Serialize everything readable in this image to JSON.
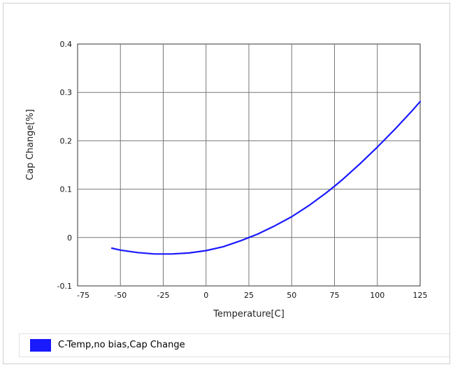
{
  "chart_data": {
    "type": "line",
    "xlabel": "Temperature[C]",
    "ylabel": "Cap Change[%]",
    "xlim": [
      -75,
      125
    ],
    "ylim": [
      -0.1,
      0.4
    ],
    "x_ticks": [
      "-75",
      "-50",
      "-25",
      "0",
      "25",
      "50",
      "75",
      "100",
      "125"
    ],
    "y_ticks": [
      "0.4",
      "0.3",
      "0.2",
      "0.1",
      "0",
      "-0.1"
    ],
    "grid": true,
    "legend_position": "bottom",
    "series": [
      {
        "name": "C-Temp,no bias,Cap Change",
        "color": "#1a1aff",
        "x": [
          -55,
          -50,
          -40,
          -30,
          -25,
          -20,
          -10,
          0,
          10,
          20,
          25,
          30,
          40,
          50,
          60,
          70,
          75,
          80,
          90,
          100,
          110,
          120,
          125
        ],
        "y": [
          -0.022,
          -0.026,
          -0.031,
          -0.034,
          -0.034,
          -0.034,
          -0.032,
          -0.027,
          -0.019,
          -0.007,
          0.0,
          0.007,
          0.024,
          0.043,
          0.066,
          0.092,
          0.106,
          0.121,
          0.153,
          0.187,
          0.223,
          0.261,
          0.281
        ]
      }
    ]
  }
}
